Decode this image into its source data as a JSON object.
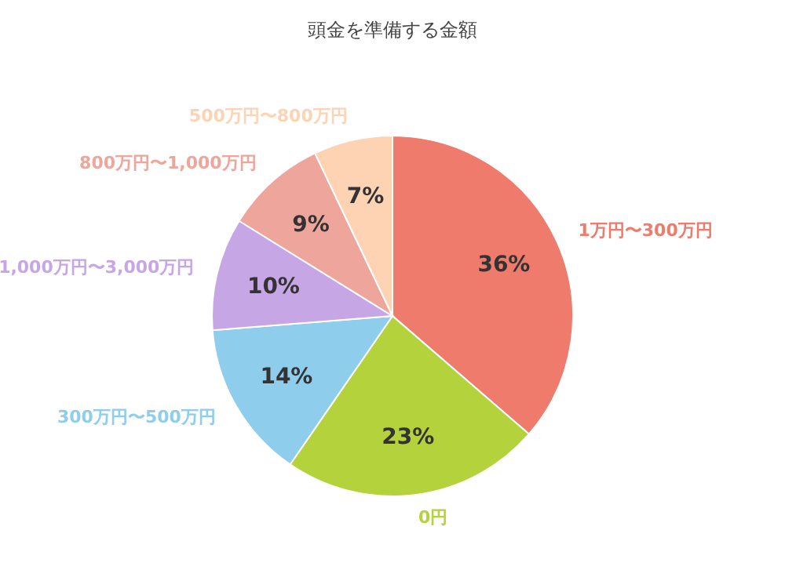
{
  "chart_data": {
    "type": "pie",
    "title": "頭金を準備する金額",
    "categories": [
      "1万円〜300万円",
      "0円",
      "300万円〜500万円",
      "1,000万円〜3,000万円",
      "800万円〜1,000万円",
      "500万円〜800万円"
    ],
    "values": [
      36,
      23,
      14,
      10,
      9,
      7
    ],
    "value_labels": [
      "36%",
      "23%",
      "14%",
      "10%",
      "9%",
      "7%"
    ],
    "colors": [
      "#ee7b6b",
      "#b3d23c",
      "#8fcdec",
      "#c7a6e6",
      "#eea69c",
      "#fdd3b4"
    ],
    "legend": false
  }
}
